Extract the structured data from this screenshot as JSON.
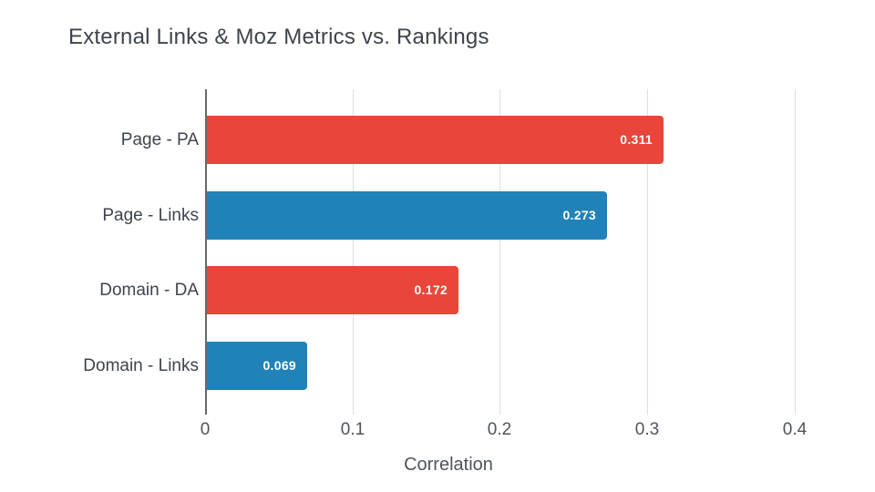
{
  "title": "External Links & Moz Metrics vs. Rankings",
  "chart_data": {
    "type": "bar",
    "orientation": "horizontal",
    "title": "External Links & Moz Metrics vs. Rankings",
    "categories": [
      "Page - PA",
      "Page - Links",
      "Domain - DA",
      "Domain - Links"
    ],
    "values": [
      0.311,
      0.273,
      0.172,
      0.069
    ],
    "value_labels": [
      "0.311",
      "0.273",
      "0.172",
      "0.069"
    ],
    "bar_colors": [
      "#e8463a",
      "#2082b9",
      "#e8463a",
      "#2082b9"
    ],
    "xlabel": "Correlation",
    "ylabel": "",
    "xlim": [
      0,
      0.435
    ],
    "xticks": [
      0,
      0.1,
      0.2,
      0.3,
      0.4
    ],
    "xtick_labels": [
      "0",
      "0.1",
      "0.2",
      "0.3",
      "0.4"
    ],
    "grid": "vertical-only",
    "legend": "none",
    "value_label_position": "inside-end",
    "value_label_color": "#ffffff",
    "axis_line_color": "#66696d",
    "gridline_color": "#dcdfe1",
    "title_color": "#3e444c",
    "category_label_color": "#3e444c",
    "tick_label_color": "#4e545a",
    "background_color": "#ffffff"
  }
}
